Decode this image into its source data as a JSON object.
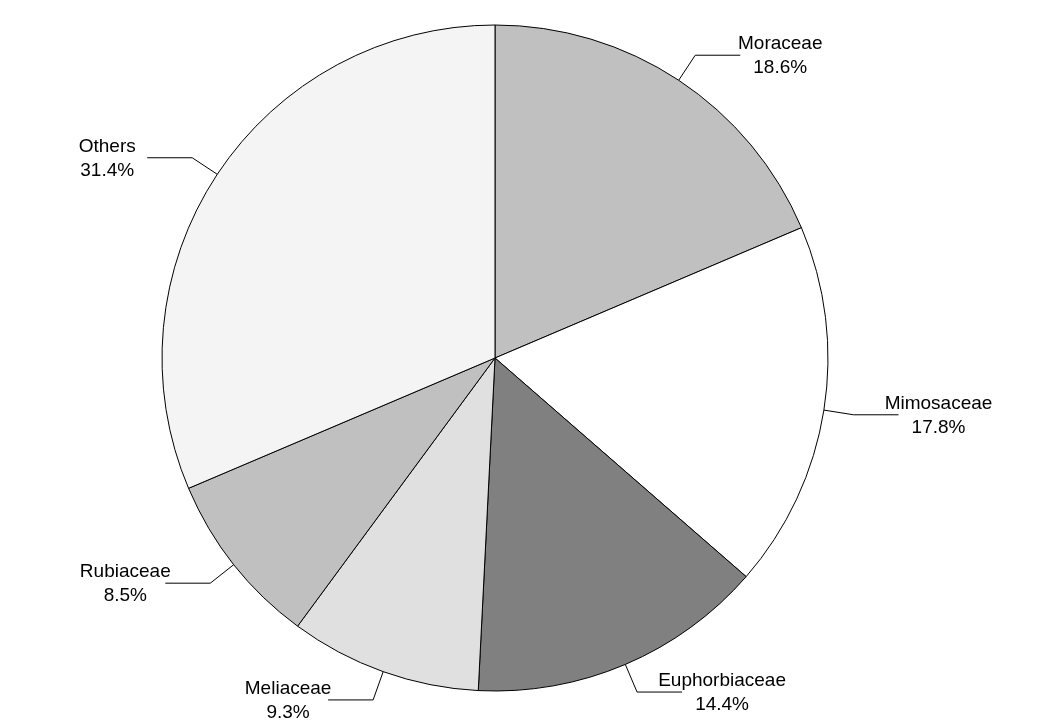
{
  "chart_data": {
    "type": "pie",
    "categories": [
      "Moraceae",
      "Mimosaceae",
      "Euphorbiaceae",
      "Meliaceae",
      "Rubiaceae",
      "Others"
    ],
    "values": [
      18.6,
      17.8,
      14.4,
      9.3,
      8.5,
      31.4
    ],
    "value_labels": [
      "18.6%",
      "17.8%",
      "14.4%",
      "9.3%",
      "8.5%",
      "31.4%"
    ],
    "colors": [
      "#c0c0c0",
      "#ffffff",
      "#808080",
      "#e0e0e0",
      "#c0c0c0",
      "#f4f4f4"
    ],
    "legend": false
  }
}
